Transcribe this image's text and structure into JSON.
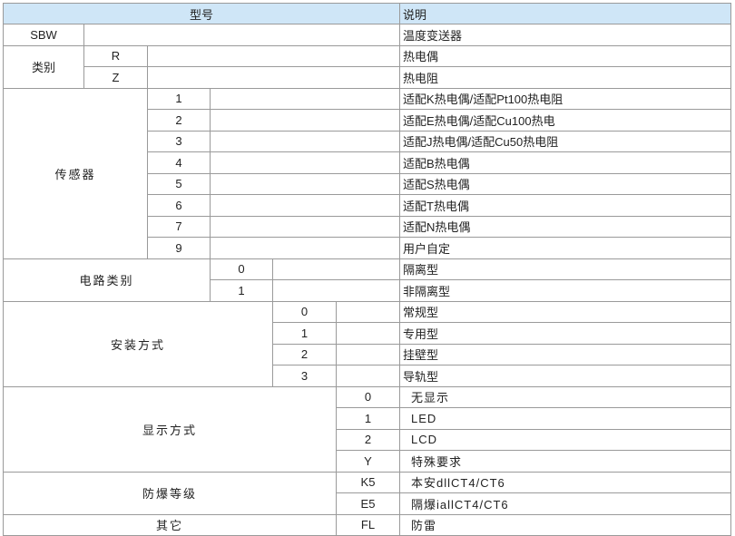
{
  "header": {
    "model": "型号",
    "desc": "说明"
  },
  "sbw": {
    "code": "SBW",
    "desc": "温度变送器"
  },
  "category": {
    "label": "类别",
    "items": [
      {
        "code": "R",
        "desc": "热电偶"
      },
      {
        "code": "Z",
        "desc": "热电阻"
      }
    ]
  },
  "sensor": {
    "label": "传感器",
    "items": [
      {
        "code": "1",
        "desc": "适配K热电偶/适配Pt100热电阻"
      },
      {
        "code": "2",
        "desc": "适配E热电偶/适配Cu100热电"
      },
      {
        "code": "3",
        "desc": "适配J热电偶/适配Cu50热电阻"
      },
      {
        "code": "4",
        "desc": "适配B热电偶"
      },
      {
        "code": "5",
        "desc": "适配S热电偶"
      },
      {
        "code": "6",
        "desc": "适配T热电偶"
      },
      {
        "code": "7",
        "desc": "适配N热电偶"
      },
      {
        "code": "9",
        "desc": "用户自定"
      }
    ]
  },
  "circuit": {
    "label": "电路类别",
    "items": [
      {
        "code": "0",
        "desc": "隔离型"
      },
      {
        "code": "1",
        "desc": "非隔离型"
      }
    ]
  },
  "install": {
    "label": "安装方式",
    "items": [
      {
        "code": "0",
        "desc": "常规型"
      },
      {
        "code": "1",
        "desc": "专用型"
      },
      {
        "code": "2",
        "desc": "挂壁型"
      },
      {
        "code": "3",
        "desc": "导轨型"
      }
    ]
  },
  "display": {
    "label": "显示方式",
    "items": [
      {
        "code": "0",
        "desc": "无显示"
      },
      {
        "code": "1",
        "desc": "LED"
      },
      {
        "code": "2",
        "desc": "LCD"
      },
      {
        "code": "Y",
        "desc": "特殊要求"
      }
    ]
  },
  "explosion": {
    "label": "防爆等级",
    "items": [
      {
        "code": "K5",
        "desc": "本安dllCT4/CT6"
      },
      {
        "code": "E5",
        "desc": "隔爆iallCT4/CT6"
      }
    ]
  },
  "other": {
    "label": "其它",
    "items": [
      {
        "code": "FL",
        "desc": "防雷"
      }
    ]
  },
  "colors": {
    "header_bg": "#cfe6f7",
    "border": "#9a9a9a"
  }
}
